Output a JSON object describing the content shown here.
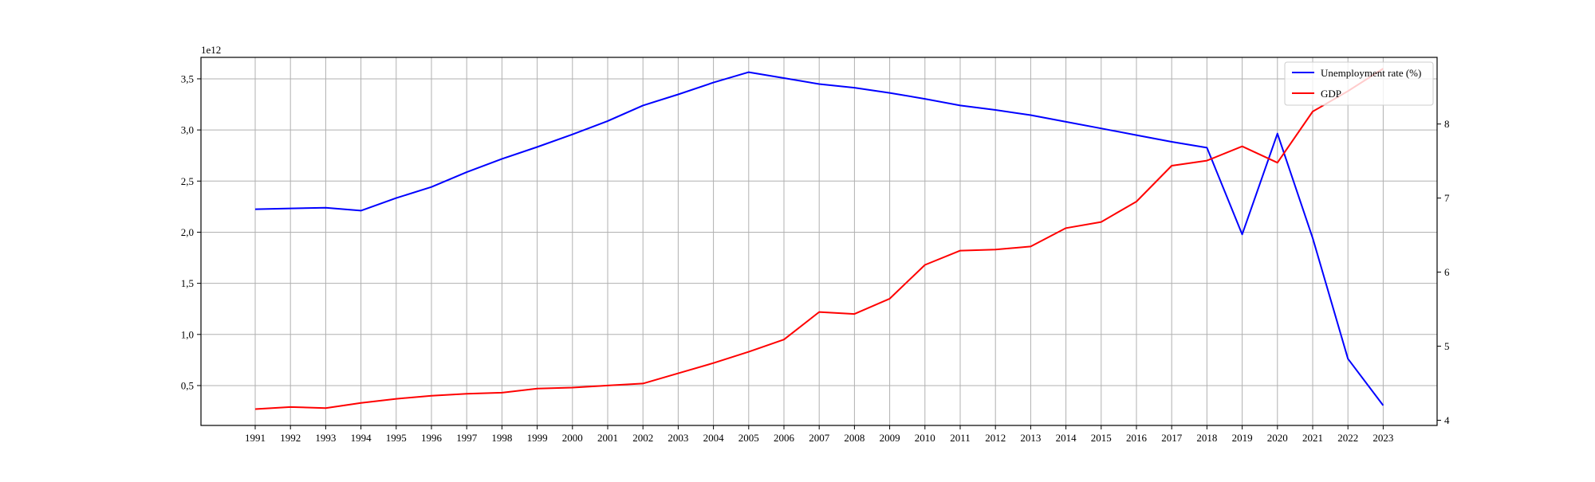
{
  "chart_data": {
    "type": "line",
    "title": "",
    "xlabel": "",
    "ylabel_left": "",
    "ylabel_right": "",
    "left_axis_exponent_label": "1e12",
    "x": [
      1991,
      1992,
      1993,
      1994,
      1995,
      1996,
      1997,
      1998,
      1999,
      2000,
      2001,
      2002,
      2003,
      2004,
      2005,
      2006,
      2007,
      2008,
      2009,
      2010,
      2011,
      2012,
      2013,
      2014,
      2015,
      2016,
      2017,
      2018,
      2019,
      2020,
      2021,
      2022,
      2023
    ],
    "x_tick_labels": [
      "1991",
      "1992",
      "1993",
      "1994",
      "1995",
      "1996",
      "1997",
      "1998",
      "1999",
      "2000",
      "2001",
      "2002",
      "2003",
      "2004",
      "2005",
      "2006",
      "2007",
      "2008",
      "2009",
      "2010",
      "2011",
      "2012",
      "2013",
      "2014",
      "2015",
      "2016",
      "2017",
      "2018",
      "2019",
      "2020",
      "2021",
      "2022",
      "2023"
    ],
    "left_axis": {
      "ylim": [
        0.11,
        3.71
      ],
      "ticks": [
        0.5,
        1.0,
        1.5,
        2.0,
        2.5,
        3.0,
        3.5
      ],
      "tick_labels": [
        "0,5",
        "1,0",
        "1,5",
        "2,0",
        "2,5",
        "3,0",
        "3,5"
      ]
    },
    "right_axis": {
      "ylim": [
        3.93,
        8.9
      ],
      "ticks": [
        4,
        5,
        6,
        7,
        8
      ],
      "tick_labels": [
        "4",
        "5",
        "6",
        "7",
        "8"
      ]
    },
    "grid": true,
    "legend_position": "top-right",
    "series": [
      {
        "name": "Unemployment rate (%)",
        "axis": "right",
        "color": "#0000ff",
        "values": [
          6.85,
          6.86,
          6.87,
          6.83,
          7.0,
          7.15,
          7.35,
          7.53,
          7.69,
          7.86,
          8.04,
          8.25,
          8.4,
          8.56,
          8.7,
          8.62,
          8.54,
          8.49,
          8.42,
          8.34,
          8.25,
          8.19,
          8.12,
          8.03,
          7.94,
          7.85,
          7.76,
          7.68,
          6.51,
          7.87,
          6.46,
          4.83,
          4.2
        ]
      },
      {
        "name": "GDP",
        "axis": "left",
        "color": "#ff0000",
        "values": [
          0.27,
          0.29,
          0.28,
          0.33,
          0.37,
          0.4,
          0.42,
          0.43,
          0.47,
          0.48,
          0.5,
          0.52,
          0.62,
          0.72,
          0.83,
          0.95,
          1.22,
          1.2,
          1.35,
          1.68,
          1.82,
          1.83,
          1.86,
          2.04,
          2.1,
          2.3,
          2.65,
          2.7,
          2.84,
          2.68,
          3.18,
          3.38,
          3.6
        ]
      }
    ]
  }
}
